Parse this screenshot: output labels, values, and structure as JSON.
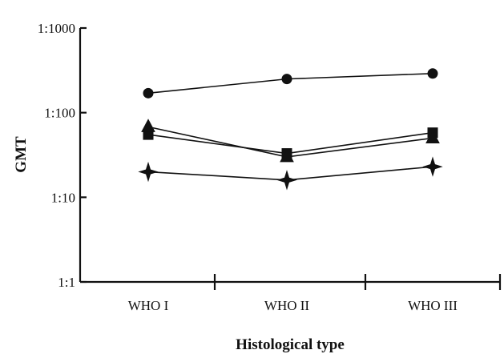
{
  "chart_data": {
    "type": "line",
    "title": "",
    "xlabel": "Histological type",
    "ylabel": "GMT",
    "categories": [
      "WHO I",
      "WHO II",
      "WHO III"
    ],
    "y_scale": "log",
    "ylim": [
      1,
      1000
    ],
    "y_ticks": [
      1,
      10,
      100,
      1000
    ],
    "y_tick_labels": [
      "1:1",
      "1:10",
      "1:100",
      "1:1000"
    ],
    "grid": false,
    "series": [
      {
        "marker": "circle",
        "values": [
          170,
          250,
          290
        ]
      },
      {
        "marker": "square",
        "values": [
          55,
          33,
          58
        ]
      },
      {
        "marker": "triangle",
        "values": [
          68,
          30,
          50
        ]
      },
      {
        "marker": "star",
        "values": [
          20,
          16,
          23
        ]
      }
    ]
  }
}
